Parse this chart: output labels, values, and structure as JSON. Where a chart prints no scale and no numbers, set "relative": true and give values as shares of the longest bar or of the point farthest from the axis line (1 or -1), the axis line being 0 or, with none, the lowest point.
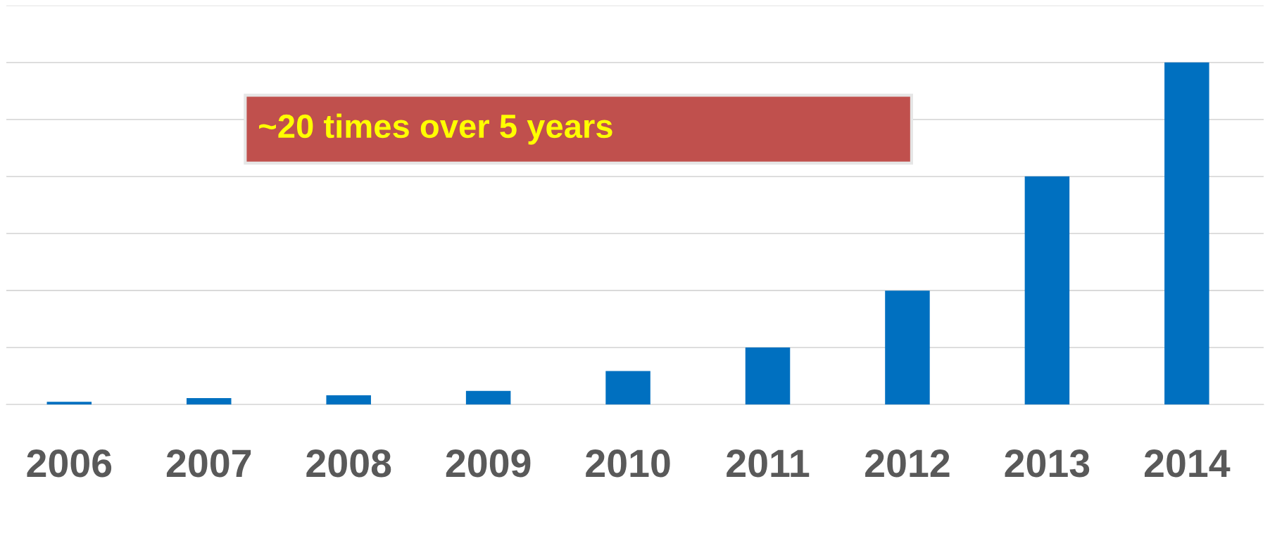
{
  "chart_data": {
    "type": "bar",
    "relative": true,
    "categories": [
      "2006",
      "2007",
      "2008",
      "2009",
      "2010",
      "2011",
      "2012",
      "2013",
      "2014"
    ],
    "values": [
      0.008,
      0.019,
      0.027,
      0.04,
      0.098,
      0.167,
      0.333,
      0.667,
      1
    ],
    "color": "#0070c0",
    "grid": "y",
    "legend": false,
    "annotations": [
      "~20 times over 5 years"
    ]
  }
}
